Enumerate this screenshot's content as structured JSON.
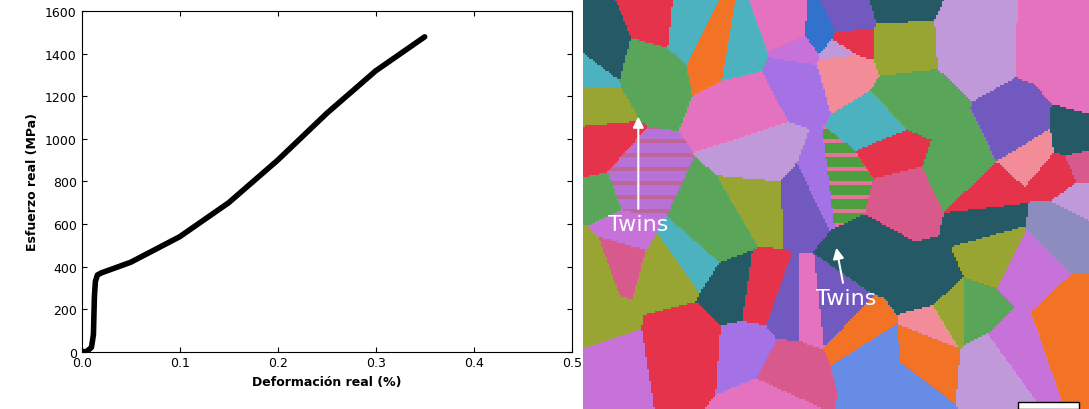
{
  "chart_data": {
    "type": "line",
    "x_label": "Deformación real (%)",
    "y_label": "Esfuerzo real (MPa)",
    "x": [
      0.0,
      0.005,
      0.01,
      0.012,
      0.013,
      0.014,
      0.016,
      0.02,
      0.05,
      0.1,
      0.15,
      0.2,
      0.25,
      0.3,
      0.35
    ],
    "values": [
      0,
      0,
      20,
      80,
      260,
      330,
      360,
      370,
      420,
      540,
      700,
      900,
      1120,
      1320,
      1480
    ],
    "color": "#000000",
    "xlim": [
      0.0,
      0.5
    ],
    "xticks": [
      0.0,
      0.1,
      0.2,
      0.3,
      0.4,
      0.5
    ],
    "ylim": [
      0,
      1600
    ],
    "yticks": [
      0,
      200,
      400,
      600,
      800,
      1000,
      1200,
      1400,
      1600
    ],
    "grid": false
  },
  "micrograph": {
    "annotations": [
      "Twins",
      "Twins"
    ]
  }
}
